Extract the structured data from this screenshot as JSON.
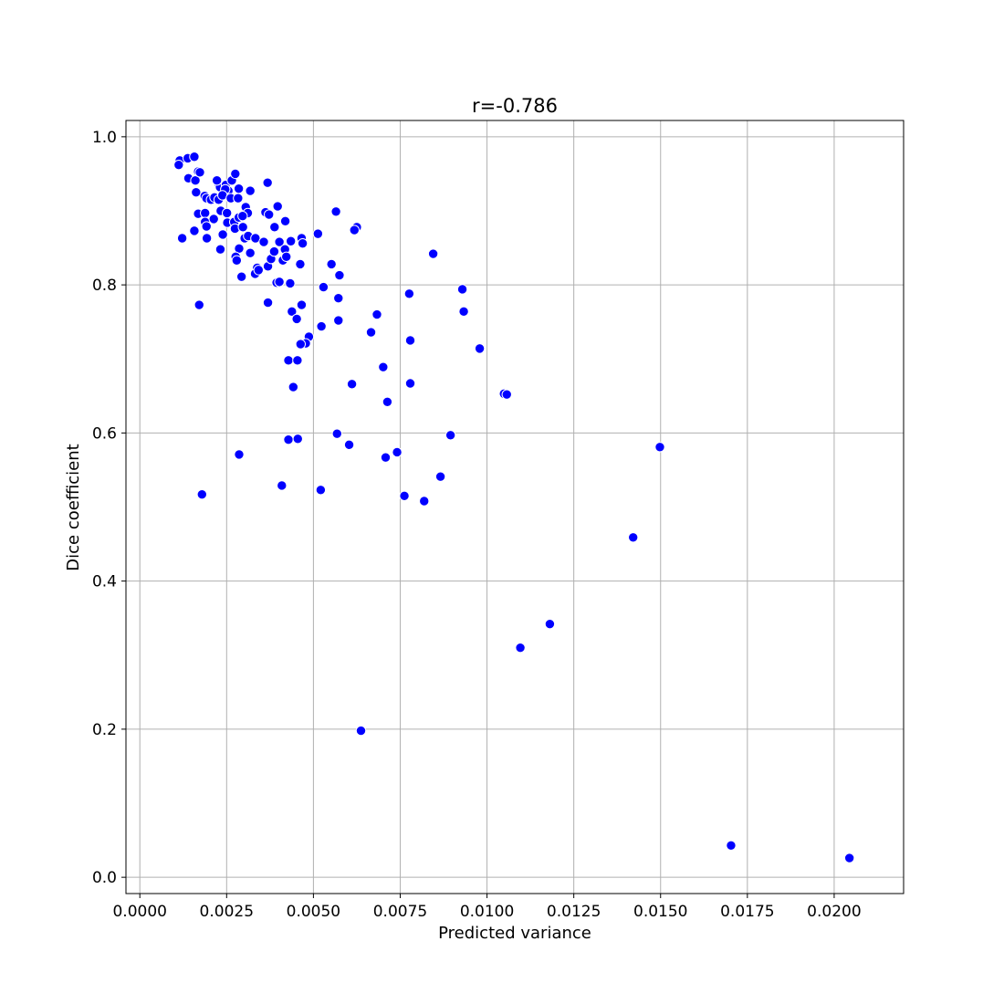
{
  "chart_data": {
    "type": "scatter",
    "title": "r=-0.786",
    "xlabel": "Predicted variance",
    "ylabel": "Dice coefficient",
    "xlim": [
      -0.0004,
      0.022
    ],
    "ylim": [
      -0.022,
      1.022
    ],
    "grid": true,
    "legend": "none",
    "color": "#0000ff",
    "x_ticks": [
      {
        "value": 0.0,
        "label": "0.0000"
      },
      {
        "value": 0.0025,
        "label": "0.0025"
      },
      {
        "value": 0.005,
        "label": "0.0050"
      },
      {
        "value": 0.0075,
        "label": "0.0075"
      },
      {
        "value": 0.01,
        "label": "0.0100"
      },
      {
        "value": 0.0125,
        "label": "0.0125"
      },
      {
        "value": 0.015,
        "label": "0.0150"
      },
      {
        "value": 0.0175,
        "label": "0.0175"
      },
      {
        "value": 0.02,
        "label": "0.0200"
      }
    ],
    "y_ticks": [
      {
        "value": 0.0,
        "label": "0.0"
      },
      {
        "value": 0.2,
        "label": "0.2"
      },
      {
        "value": 0.4,
        "label": "0.4"
      },
      {
        "value": 0.6,
        "label": "0.6"
      },
      {
        "value": 0.8,
        "label": "0.8"
      },
      {
        "value": 1.0,
        "label": "1.0"
      }
    ],
    "points": [
      [
        0.00115,
        0.968
      ],
      [
        0.00112,
        0.962
      ],
      [
        0.00138,
        0.971
      ],
      [
        0.00157,
        0.973
      ],
      [
        0.0014,
        0.944
      ],
      [
        0.0016,
        0.941
      ],
      [
        0.00168,
        0.953
      ],
      [
        0.00173,
        0.952
      ],
      [
        0.00162,
        0.925
      ],
      [
        0.00187,
        0.92
      ],
      [
        0.00192,
        0.917
      ],
      [
        0.00205,
        0.915
      ],
      [
        0.00215,
        0.918
      ],
      [
        0.00226,
        0.937
      ],
      [
        0.00231,
        0.932
      ],
      [
        0.00222,
        0.941
      ],
      [
        0.00248,
        0.935
      ],
      [
        0.00265,
        0.941
      ],
      [
        0.00275,
        0.95
      ],
      [
        0.00285,
        0.93
      ],
      [
        0.00255,
        0.927
      ],
      [
        0.00246,
        0.929
      ],
      [
        0.00227,
        0.915
      ],
      [
        0.00238,
        0.921
      ],
      [
        0.00262,
        0.917
      ],
      [
        0.00283,
        0.917
      ],
      [
        0.00168,
        0.896
      ],
      [
        0.00188,
        0.897
      ],
      [
        0.00188,
        0.885
      ],
      [
        0.00192,
        0.879
      ],
      [
        0.00213,
        0.889
      ],
      [
        0.00233,
        0.9
      ],
      [
        0.00251,
        0.897
      ],
      [
        0.00252,
        0.884
      ],
      [
        0.00272,
        0.885
      ],
      [
        0.00285,
        0.891
      ],
      [
        0.00305,
        0.905
      ],
      [
        0.00311,
        0.897
      ],
      [
        0.00318,
        0.927
      ],
      [
        0.00296,
        0.893
      ],
      [
        0.00157,
        0.873
      ],
      [
        0.00122,
        0.863
      ],
      [
        0.00193,
        0.863
      ],
      [
        0.00239,
        0.868
      ],
      [
        0.00232,
        0.848
      ],
      [
        0.00274,
        0.876
      ],
      [
        0.00297,
        0.878
      ],
      [
        0.00302,
        0.863
      ],
      [
        0.00312,
        0.866
      ],
      [
        0.00286,
        0.849
      ],
      [
        0.00276,
        0.838
      ],
      [
        0.00279,
        0.833
      ],
      [
        0.00293,
        0.811
      ],
      [
        0.00318,
        0.843
      ],
      [
        0.00333,
        0.863
      ],
      [
        0.00338,
        0.823
      ],
      [
        0.00332,
        0.815
      ],
      [
        0.00342,
        0.82
      ],
      [
        0.00357,
        0.858
      ],
      [
        0.00362,
        0.898
      ],
      [
        0.00372,
        0.895
      ],
      [
        0.00368,
        0.938
      ],
      [
        0.00388,
        0.878
      ],
      [
        0.00397,
        0.906
      ],
      [
        0.00419,
        0.886
      ],
      [
        0.00369,
        0.825
      ],
      [
        0.00378,
        0.835
      ],
      [
        0.00387,
        0.845
      ],
      [
        0.00402,
        0.858
      ],
      [
        0.00412,
        0.833
      ],
      [
        0.00418,
        0.848
      ],
      [
        0.00422,
        0.838
      ],
      [
        0.00435,
        0.859
      ],
      [
        0.00466,
        0.863
      ],
      [
        0.00469,
        0.856
      ],
      [
        0.00462,
        0.828
      ],
      [
        0.00394,
        0.803
      ],
      [
        0.00402,
        0.804
      ],
      [
        0.00433,
        0.802
      ],
      [
        0.00513,
        0.869
      ],
      [
        0.00565,
        0.899
      ],
      [
        0.00625,
        0.878
      ],
      [
        0.00618,
        0.874
      ],
      [
        0.00552,
        0.828
      ],
      [
        0.00575,
        0.813
      ],
      [
        0.00529,
        0.797
      ],
      [
        0.00572,
        0.782
      ],
      [
        0.00369,
        0.776
      ],
      [
        0.00171,
        0.773
      ],
      [
        0.00466,
        0.773
      ],
      [
        0.00438,
        0.764
      ],
      [
        0.00452,
        0.754
      ],
      [
        0.00523,
        0.744
      ],
      [
        0.00572,
        0.752
      ],
      [
        0.00487,
        0.73
      ],
      [
        0.00478,
        0.721
      ],
      [
        0.00463,
        0.72
      ],
      [
        0.00428,
        0.698
      ],
      [
        0.00454,
        0.698
      ],
      [
        0.00442,
        0.662
      ],
      [
        0.00666,
        0.736
      ],
      [
        0.00683,
        0.76
      ],
      [
        0.00776,
        0.788
      ],
      [
        0.00845,
        0.842
      ],
      [
        0.00929,
        0.794
      ],
      [
        0.00933,
        0.764
      ],
      [
        0.00779,
        0.725
      ],
      [
        0.00979,
        0.714
      ],
      [
        0.00701,
        0.689
      ],
      [
        0.00779,
        0.667
      ],
      [
        0.00611,
        0.666
      ],
      [
        0.00713,
        0.642
      ],
      [
        0.01049,
        0.653
      ],
      [
        0.01057,
        0.652
      ],
      [
        0.00568,
        0.599
      ],
      [
        0.00603,
        0.584
      ],
      [
        0.00895,
        0.597
      ],
      [
        0.00428,
        0.591
      ],
      [
        0.00455,
        0.592
      ],
      [
        0.00286,
        0.571
      ],
      [
        0.00708,
        0.567
      ],
      [
        0.00741,
        0.574
      ],
      [
        0.00866,
        0.541
      ],
      [
        0.00409,
        0.529
      ],
      [
        0.00521,
        0.523
      ],
      [
        0.00762,
        0.515
      ],
      [
        0.00819,
        0.508
      ],
      [
        0.00179,
        0.517
      ],
      [
        0.01498,
        0.581
      ],
      [
        0.01421,
        0.459
      ],
      [
        0.01181,
        0.342
      ],
      [
        0.01096,
        0.31
      ],
      [
        0.00637,
        0.198
      ],
      [
        0.01703,
        0.043
      ],
      [
        0.02044,
        0.026
      ]
    ]
  }
}
